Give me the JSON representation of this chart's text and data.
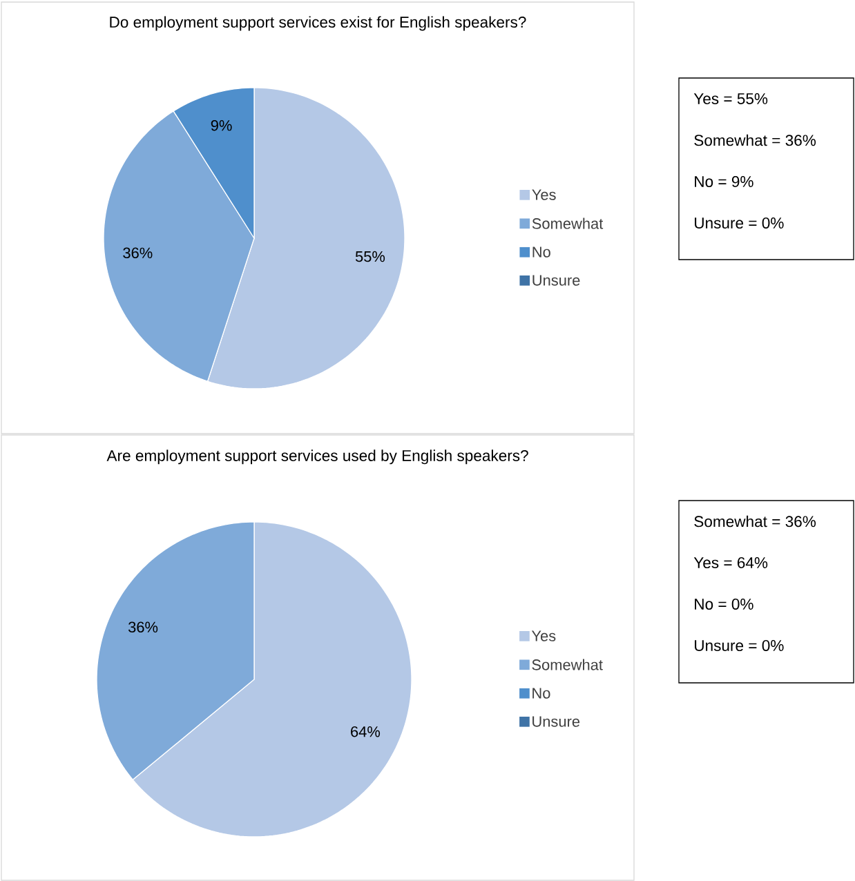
{
  "chart_data": [
    {
      "type": "pie",
      "title": "Do employment support services exist for English speakers?",
      "categories": [
        "Yes",
        "Somewhat",
        "No",
        "Unsure"
      ],
      "values": [
        55,
        36,
        9,
        0
      ],
      "colors": [
        "#b4c8e6",
        "#7faad9",
        "#4f8fcc",
        "#3f73a6"
      ],
      "value_labels": [
        "55%",
        "36%",
        "9%",
        null
      ],
      "legend": "right"
    },
    {
      "type": "other",
      "annotations": [
        "Yes = 55%",
        "Somewhat = 36%",
        "No = 9%",
        "Unsure = 0%"
      ]
    },
    {
      "type": "pie",
      "title": "Are employment support services used by English speakers?",
      "categories": [
        "Yes",
        "Somewhat",
        "No",
        "Unsure"
      ],
      "values": [
        64,
        36,
        0,
        0
      ],
      "colors": [
        "#b4c8e6",
        "#7faad9",
        "#4f8fcc",
        "#3f73a6"
      ],
      "value_labels": [
        "64%",
        "36%",
        null,
        null
      ],
      "legend": "right"
    },
    {
      "type": "other",
      "annotations": [
        "Somewhat = 36%",
        "Yes = 64%",
        "No = 0%",
        "Unsure = 0%"
      ]
    }
  ]
}
